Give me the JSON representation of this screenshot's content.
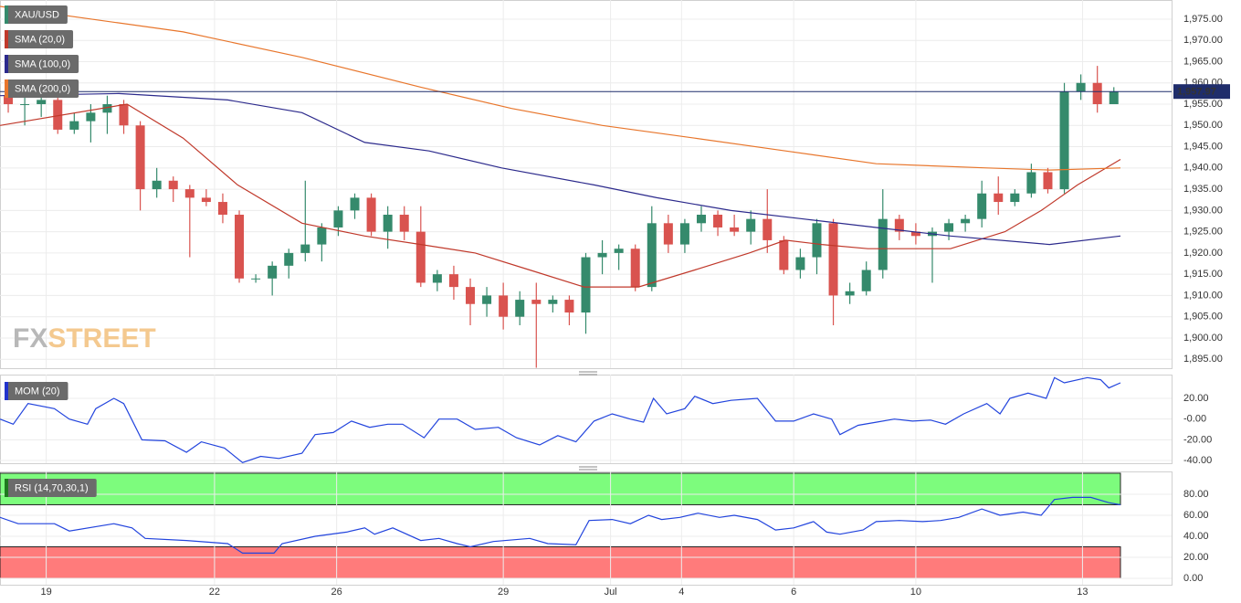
{
  "chart_data": [
    {
      "type": "candlestick",
      "title": "XAU/USD",
      "watermark": [
        "FX",
        "STREET"
      ],
      "up_color": "#358a6c",
      "down_color": "#d9534f",
      "open": [
        1957,
        1955,
        1955,
        1956,
        1949,
        1951,
        1953,
        1955,
        1950,
        1935,
        1937,
        1935,
        1933,
        1932,
        1929,
        1914,
        1914,
        1917,
        1920,
        1922,
        1926,
        1930,
        1933,
        1925,
        1929,
        1925,
        1913,
        1915,
        1912,
        1908,
        1910,
        1905,
        1909,
        1908,
        1909,
        1906,
        1919,
        1920,
        1921,
        1912,
        1927,
        1922,
        1927,
        1929,
        1926,
        1925,
        1928,
        1923,
        1916,
        1919,
        1927,
        1910,
        1911,
        1916,
        1928,
        1925,
        1924,
        1925,
        1927,
        1928,
        1934,
        1932,
        1934,
        1939,
        1935,
        1958,
        1960,
        1955
      ],
      "high": [
        1960,
        1957,
        1958,
        1957,
        1953,
        1955,
        1957,
        1956,
        1951,
        1940,
        1938,
        1936,
        1935,
        1934,
        1930,
        1915,
        1918,
        1921,
        1937,
        1927,
        1931,
        1934,
        1934,
        1931,
        1931,
        1931,
        1916,
        1917,
        1914,
        1912,
        1913,
        1911,
        1913,
        1910,
        1910,
        1920,
        1923,
        1922,
        1922,
        1931,
        1929,
        1928,
        1931,
        1930,
        1929,
        1930,
        1935,
        1924,
        1921,
        1928,
        1928,
        1913,
        1918,
        1935,
        1929,
        1927,
        1926,
        1928,
        1929,
        1937,
        1938,
        1935,
        1941,
        1940,
        1960,
        1962,
        1964,
        1959
      ],
      "low": [
        1953,
        1950,
        1952,
        1948,
        1948,
        1946,
        1948,
        1948,
        1930,
        1933,
        1932,
        1919,
        1931,
        1927,
        1913,
        1913,
        1910,
        1914,
        1918,
        1918,
        1924,
        1928,
        1924,
        1921,
        1923,
        1912,
        1911,
        1909,
        1903,
        1905,
        1902,
        1903,
        1893,
        1906,
        1903,
        1901,
        1915,
        1916,
        1911,
        1911,
        1920,
        1920,
        1925,
        1924,
        1924,
        1922,
        1920,
        1915,
        1914,
        1915,
        1903,
        1908,
        1910,
        1914,
        1923,
        1922,
        1913,
        1923,
        1925,
        1926,
        1929,
        1931,
        1933,
        1934,
        1934,
        1956,
        1953,
        1955
      ],
      "close": [
        1955,
        1955,
        1956,
        1949,
        1951,
        1953,
        1955,
        1950,
        1935,
        1937,
        1935,
        1933,
        1932,
        1929,
        1914,
        1914,
        1917,
        1920,
        1922,
        1926,
        1930,
        1933,
        1925,
        1929,
        1925,
        1913,
        1915,
        1912,
        1908,
        1910,
        1905,
        1909,
        1908,
        1909,
        1906,
        1919,
        1920,
        1921,
        1912,
        1927,
        1922,
        1927,
        1929,
        1926,
        1925,
        1928,
        1923,
        1916,
        1919,
        1927,
        1910,
        1911,
        1916,
        1928,
        1925,
        1924,
        1925,
        1927,
        1928,
        1934,
        1932,
        1934,
        1939,
        1935,
        1958,
        1960,
        1955,
        1957.97
      ],
      "last_price": {
        "value": 1957.97,
        "label": "1,957.97"
      },
      "last_price_color": "#1f2d6b",
      "series": [
        {
          "name": "SMA (20,0)",
          "color": "#c0392b",
          "x": [
            -0.5,
            7.2,
            10.6,
            13.9,
            17.8,
            21.6,
            25,
            28.3,
            31.6,
            34.9,
            38.2,
            41.6,
            44.9,
            47.1,
            49.3,
            52.1,
            57.1,
            60.4,
            62.6,
            64.8,
            67.4
          ],
          "values": [
            1950,
            1955,
            1947,
            1936,
            1927,
            1924,
            1922,
            1920,
            1916,
            1912,
            1912,
            1916,
            1920,
            1923,
            1922,
            1921,
            1921,
            1925,
            1930,
            1936,
            1942
          ]
        },
        {
          "name": "SMA (100,0)",
          "color": "#2c2a8c",
          "x": [
            -0.5,
            6.7,
            13.3,
            17.8,
            21.6,
            25.5,
            29.9,
            35.5,
            39.3,
            43.8,
            48.2,
            52.6,
            57.1,
            63.1,
            67.4
          ],
          "values": [
            1957,
            1957.5,
            1956,
            1953,
            1946,
            1944,
            1940,
            1936,
            1933,
            1930,
            1928,
            1926,
            1924,
            1922,
            1924
          ]
        },
        {
          "name": "SMA (200,0)",
          "color": "#e8762c",
          "x": [
            -0.5,
            10.6,
            17.8,
            25,
            30.5,
            36.0,
            41.6,
            47.1,
            52.6,
            59.3,
            63.1,
            67.4
          ],
          "values": [
            1978,
            1972,
            1966,
            1959,
            1954,
            1950,
            1947,
            1944,
            1941,
            1940,
            1939.5,
            1940
          ]
        }
      ],
      "xlim": [
        -0.5,
        70.5
      ],
      "ylim": [
        1892.9,
        1979.5
      ],
      "yticks": [
        {
          "value": 1895,
          "label": "1,895.00"
        },
        {
          "value": 1900,
          "label": "1,900.00"
        },
        {
          "value": 1905,
          "label": "1,905.00"
        },
        {
          "value": 1910,
          "label": "1,910.00"
        },
        {
          "value": 1915,
          "label": "1,915.00"
        },
        {
          "value": 1920,
          "label": "1,920.00"
        },
        {
          "value": 1925,
          "label": "1,925.00"
        },
        {
          "value": 1930,
          "label": "1,930.00"
        },
        {
          "value": 1935,
          "label": "1,935.00"
        },
        {
          "value": 1940,
          "label": "1,940.00"
        },
        {
          "value": 1945,
          "label": "1,945.00"
        },
        {
          "value": 1950,
          "label": "1,950.00"
        },
        {
          "value": 1955,
          "label": "1,955.00"
        },
        {
          "value": 1960,
          "label": "1,960.00"
        },
        {
          "value": 1965,
          "label": "1,965.00"
        },
        {
          "value": 1970,
          "label": "1,970.00"
        },
        {
          "value": 1975,
          "label": "1,975.00"
        }
      ],
      "grid": true
    },
    {
      "type": "line",
      "title": "MOM (20)",
      "title_color": "#2233cc",
      "series": [
        {
          "color": "#2244dd",
          "x": [
            -0.5,
            0.3,
            1.2,
            2.8,
            3.7,
            4.8,
            5.3,
            6.4,
            7,
            8.1,
            9.5,
            10.8,
            11.7,
            13.1,
            14.2,
            15.3,
            16.4,
            17.8,
            18.6,
            19.7,
            20.8,
            21.9,
            23,
            23.9,
            25.2,
            26.1,
            27.2,
            28.3,
            29.7,
            30.8,
            32.2,
            33.3,
            34.4,
            35.5,
            36.6,
            37.7,
            38.5,
            39.1,
            39.9,
            41,
            41.6,
            42.7,
            43.8,
            45.4,
            46.5,
            47.6,
            48.8,
            49.9,
            50.4,
            51.5,
            52.6,
            53.7,
            54.8,
            55.9,
            56.8,
            57.9,
            59.3,
            60.1,
            60.7,
            61.8,
            62.9,
            63.4,
            64,
            65.4,
            66.2,
            66.7,
            67.4
          ],
          "values": [
            0,
            -5,
            15,
            10,
            0,
            -5,
            10,
            20,
            15,
            -20,
            -21,
            -32,
            -22,
            -28,
            -42,
            -36,
            -38,
            -33,
            -15,
            -13,
            -2,
            -8,
            -5,
            -5,
            -18,
            0,
            0,
            -10,
            -8,
            -18,
            -25,
            -16,
            -22,
            -2,
            5,
            0,
            -3,
            20,
            5,
            10,
            22,
            15,
            18,
            20,
            -2,
            -2,
            5,
            0,
            -15,
            -6,
            -3,
            0,
            -2,
            -1,
            -5,
            5,
            15,
            5,
            20,
            25,
            20,
            40,
            35,
            40,
            38,
            30,
            35
          ]
        }
      ],
      "xlim": [
        -0.5,
        70.5
      ],
      "ylim": [
        -42.6,
        42.9
      ],
      "yticks": [
        {
          "value": 20,
          "label": "20.00"
        },
        {
          "value": 0,
          "label": "-0.00"
        },
        {
          "value": -20,
          "label": "-20.00"
        },
        {
          "value": -40,
          "label": "-40.00"
        }
      ],
      "grid": true
    },
    {
      "type": "line",
      "title": "RSI (14,70,30,1)",
      "title_color": "#1e7a1e",
      "bands": [
        {
          "range": [
            70,
            100
          ],
          "color": "#7dfc7d"
        },
        {
          "range": [
            0,
            30
          ],
          "color": "#ff7b7b"
        }
      ],
      "series": [
        {
          "color": "#2244dd",
          "x": [
            -0.5,
            0.6,
            2.8,
            3.7,
            6.4,
            7.5,
            8.3,
            10.8,
            13.3,
            14.2,
            16.1,
            16.6,
            18.6,
            20.5,
            21.6,
            22.2,
            23.3,
            25,
            26.1,
            27.2,
            28,
            29.4,
            31.6,
            32.7,
            34.4,
            35.2,
            36.6,
            37.7,
            38.8,
            39.6,
            40.7,
            41.8,
            43.1,
            44,
            45.4,
            46.5,
            47.6,
            48.8,
            49.6,
            50.4,
            51.8,
            52.6,
            54,
            55.4,
            56.5,
            57.6,
            59,
            60.1,
            61.5,
            62.6,
            63.4,
            64.5,
            65.6,
            66.7,
            67.4
          ],
          "values": [
            58,
            52,
            52,
            45,
            52,
            48,
            38,
            36,
            33,
            24,
            24,
            33,
            40,
            44,
            48,
            42,
            48,
            36,
            38,
            33,
            30,
            35,
            38,
            33,
            32,
            55,
            56,
            52,
            60,
            56,
            58,
            62,
            58,
            60,
            56,
            46,
            48,
            54,
            44,
            42,
            46,
            54,
            55,
            54,
            55,
            58,
            66,
            60,
            63,
            60,
            75,
            77,
            77,
            72,
            70
          ]
        }
      ],
      "xlim": [
        -0.5,
        70.5
      ],
      "ylim": [
        -6.1,
        101.7
      ],
      "yticks": [
        {
          "value": 80,
          "label": "80.00"
        },
        {
          "value": 60,
          "label": "60.00"
        },
        {
          "value": 40,
          "label": "40.00"
        },
        {
          "value": 20,
          "label": "20.00"
        },
        {
          "value": 0,
          "label": "0.00"
        }
      ],
      "xticks": [
        {
          "value": 2.3,
          "label": "19"
        },
        {
          "value": 12.5,
          "label": "22"
        },
        {
          "value": 19.9,
          "label": "26"
        },
        {
          "value": 30,
          "label": "29"
        },
        {
          "value": 36.5,
          "label": "Jul"
        },
        {
          "value": 40.8,
          "label": "4"
        },
        {
          "value": 47.6,
          "label": "6"
        },
        {
          "value": 55,
          "label": "10"
        },
        {
          "value": 65.1,
          "label": "13"
        }
      ],
      "grid": true
    }
  ]
}
